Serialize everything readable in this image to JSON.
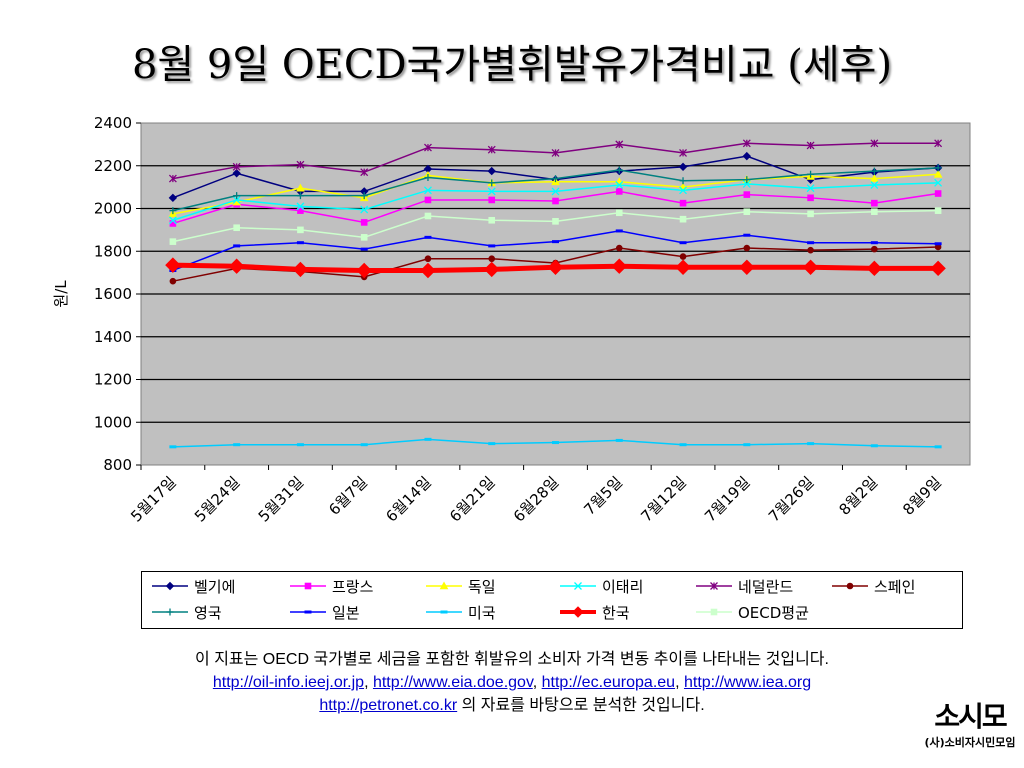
{
  "title": "8월 9일 OECD국가별휘발유가격비교 (세후)",
  "chart_data": {
    "type": "line",
    "ylabel": "원/L",
    "xlabel": "",
    "ylim": [
      800,
      2400
    ],
    "yticks": [
      800,
      1000,
      1200,
      1400,
      1600,
      1800,
      2000,
      2200,
      2400
    ],
    "grid": true,
    "legend_position": "bottom",
    "categories": [
      "5월17일",
      "5월24일",
      "5월31일",
      "6월7일",
      "6월14일",
      "6월21일",
      "6월28일",
      "7월5일",
      "7월12일",
      "7월19일",
      "7월26일",
      "8월2일",
      "8월9일"
    ],
    "series": [
      {
        "name": "벨기에",
        "color": "#000080",
        "marker": "diamond",
        "values": [
          2050,
          2165,
          2080,
          2080,
          2185,
          2175,
          2135,
          2175,
          2195,
          2245,
          2135,
          2170,
          2190
        ]
      },
      {
        "name": "프랑스",
        "color": "#ff00ff",
        "marker": "square",
        "values": [
          1930,
          2020,
          1990,
          1935,
          2040,
          2040,
          2035,
          2080,
          2025,
          2065,
          2050,
          2025,
          2070
        ]
      },
      {
        "name": "독일",
        "color": "#ffff00",
        "marker": "triangle",
        "values": [
          1975,
          2030,
          2095,
          2050,
          2155,
          2120,
          2125,
          2125,
          2100,
          2135,
          2150,
          2140,
          2160
        ]
      },
      {
        "name": "이태리",
        "color": "#00ffff",
        "marker": "x",
        "values": [
          1945,
          2040,
          2010,
          1995,
          2085,
          2080,
          2080,
          2110,
          2085,
          2115,
          2095,
          2110,
          2120
        ]
      },
      {
        "name": "네덜란드",
        "color": "#800080",
        "marker": "star",
        "values": [
          2140,
          2195,
          2205,
          2170,
          2285,
          2275,
          2260,
          2300,
          2260,
          2305,
          2295,
          2305,
          2305
        ]
      },
      {
        "name": "스페인",
        "color": "#800000",
        "marker": "circle",
        "values": [
          1660,
          1720,
          1705,
          1680,
          1765,
          1765,
          1745,
          1815,
          1775,
          1815,
          1805,
          1810,
          1820
        ]
      },
      {
        "name": "영국",
        "color": "#008080",
        "marker": "plus",
        "values": [
          1990,
          2060,
          2060,
          2060,
          2145,
          2120,
          2140,
          2180,
          2130,
          2135,
          2160,
          2175,
          2190
        ]
      },
      {
        "name": "일본",
        "color": "#0000ff",
        "marker": "dash",
        "values": [
          1710,
          1825,
          1840,
          1810,
          1865,
          1825,
          1845,
          1895,
          1840,
          1875,
          1840,
          1840,
          1835
        ]
      },
      {
        "name": "미국",
        "color": "#00ccff",
        "marker": "dash",
        "values": [
          885,
          895,
          895,
          895,
          920,
          900,
          905,
          915,
          895,
          895,
          900,
          890,
          885
        ]
      },
      {
        "name": "한국",
        "color": "#ff0000",
        "marker": "diamond",
        "values": [
          1735,
          1730,
          1715,
          1710,
          1710,
          1715,
          1725,
          1730,
          1725,
          1725,
          1725,
          1720,
          1720
        ]
      },
      {
        "name": "OECD평균",
        "color": "#ccffcc",
        "marker": "square",
        "values": [
          1845,
          1910,
          1900,
          1865,
          1965,
          1945,
          1940,
          1980,
          1950,
          1985,
          1975,
          1985,
          1990
        ]
      }
    ]
  },
  "description": {
    "line1": "이 지표는 OECD 국가별로 세금을 포함한 휘발유의 소비자 가격 변동 추이를 나타내는 것입니다.",
    "links": [
      "http://oil-info.ieej.or.jp",
      "http://www.eia.doe.gov",
      "http://ec.europa.eu",
      "http://www.iea.org",
      "http://petronet.co.kr"
    ],
    "sep": ", ",
    "line3_suffix": " 의 자료를 바탕으로 분석한 것입니다."
  },
  "logo": {
    "mark": "소시모",
    "text": "(사)소비자시민모임"
  }
}
